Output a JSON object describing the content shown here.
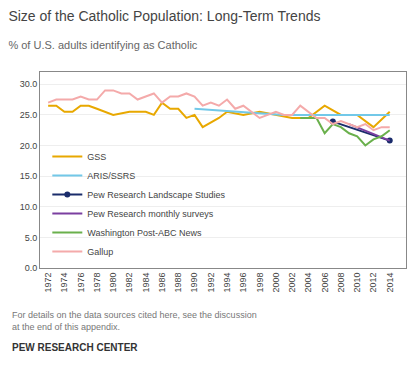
{
  "chart_data": {
    "type": "line",
    "title": "Size of the Catholic Population: Long-Term Trends",
    "subtitle": "% of U.S. adults identifying as Catholic",
    "annotations": [
      "For details on the data sources cited here, see the discussion at the end of this appendix.",
      "PEW RESEARCH CENTER"
    ],
    "xlim": [
      1971,
      2016
    ],
    "xticks": [
      1972,
      1974,
      1976,
      1978,
      1980,
      1982,
      1984,
      1986,
      1988,
      1990,
      1992,
      1994,
      1996,
      1998,
      2000,
      2002,
      2004,
      2006,
      2008,
      2010,
      2012,
      2014
    ],
    "ylim": [
      0,
      32
    ],
    "yticks": [
      {
        "value": 0,
        "label": "0.0"
      },
      {
        "value": 5,
        "label": "5.0"
      },
      {
        "value": 10,
        "label": "10.0"
      },
      {
        "value": 15,
        "label": "15.0"
      },
      {
        "value": 20,
        "label": "20.0"
      },
      {
        "value": 25,
        "label": "25.0"
      },
      {
        "value": 30,
        "label": "30.0"
      }
    ],
    "grid": "y",
    "legend": "lower left",
    "series": [
      {
        "name": "GSS",
        "color": "#E8A800",
        "x": [
          1972,
          1973,
          1974,
          1975,
          1976,
          1977,
          1978,
          1980,
          1982,
          1983,
          1984,
          1985,
          1986,
          1987,
          1988,
          1989,
          1990,
          1991,
          1993,
          1994,
          1996,
          1998,
          2000,
          2002,
          2004,
          2006,
          2008,
          2010,
          2012,
          2014
        ],
        "values": [
          26.5,
          26.5,
          25.5,
          25.5,
          26.5,
          26.5,
          26.0,
          25.0,
          25.5,
          25.5,
          25.5,
          25.0,
          27.0,
          26.0,
          26.0,
          24.5,
          25.0,
          23.0,
          24.5,
          25.5,
          25.0,
          25.5,
          25.0,
          24.5,
          24.5,
          26.5,
          25.0,
          25.0,
          23.0,
          25.5
        ]
      },
      {
        "name": "ARIS/SSRS",
        "color": "#72C8E8",
        "x": [
          1990,
          2001,
          2008,
          2014
        ],
        "values": [
          26.0,
          25.0,
          25.0,
          25.0
        ]
      },
      {
        "name": "Pew Research Landscape Studies",
        "color": "#1A2C6B",
        "marker": "circle",
        "x": [
          2007,
          2014
        ],
        "values": [
          23.9,
          20.8
        ]
      },
      {
        "name": "Pew Research monthly surveys",
        "color": "#7B3FA0",
        "x": [
          2009,
          2014
        ],
        "values": [
          23.5,
          20.8
        ]
      },
      {
        "name": "Washington Post-ABC News",
        "color": "#6AB04C",
        "x": [
          2003,
          2005,
          2006,
          2007,
          2008,
          2009,
          2010,
          2011,
          2012,
          2013,
          2014
        ],
        "values": [
          24.5,
          24.5,
          22.0,
          23.5,
          23.0,
          22.0,
          21.5,
          20.0,
          21.0,
          21.5,
          22.5
        ]
      },
      {
        "name": "Gallup",
        "color": "#F4AAAA",
        "x": [
          1972,
          1973,
          1974,
          1975,
          1976,
          1977,
          1978,
          1979,
          1980,
          1981,
          1982,
          1983,
          1984,
          1985,
          1986,
          1987,
          1988,
          1989,
          1990,
          1991,
          1992,
          1993,
          1994,
          1995,
          1996,
          1997,
          1998,
          1999,
          2000,
          2001,
          2002,
          2003,
          2004,
          2005,
          2006,
          2007,
          2008,
          2009,
          2010,
          2011,
          2012,
          2013,
          2014
        ],
        "values": [
          27.0,
          27.5,
          27.5,
          27.5,
          28.0,
          27.5,
          27.5,
          29.0,
          29.0,
          28.5,
          28.5,
          27.5,
          28.0,
          28.5,
          27.0,
          28.0,
          28.0,
          28.5,
          28.0,
          26.5,
          27.0,
          26.5,
          27.5,
          26.0,
          26.5,
          25.5,
          24.5,
          25.0,
          25.5,
          25.0,
          25.0,
          26.5,
          25.5,
          24.5,
          24.5,
          23.5,
          24.0,
          23.5,
          23.0,
          23.5,
          22.5,
          23.0,
          23.0
        ]
      }
    ]
  }
}
